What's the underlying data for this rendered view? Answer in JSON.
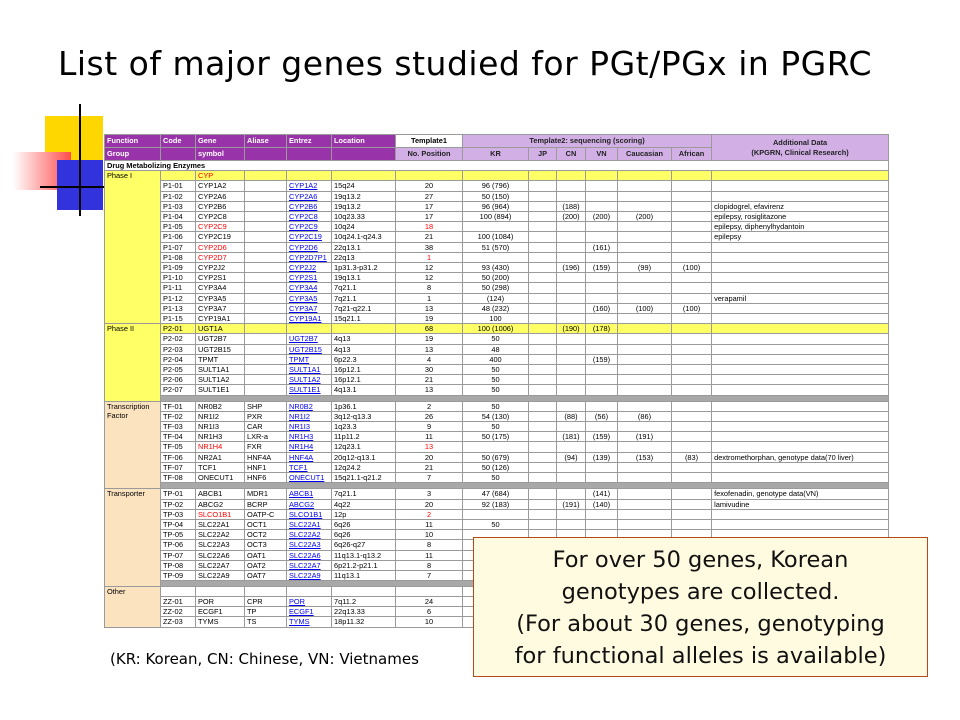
{
  "title": "List of major genes studied for PGt/PGx in PGRC",
  "colors": {
    "header_purple": "#9933aa",
    "header_light": "#d2b0e6",
    "group_bg": "#fbe3c0",
    "highlight_yellow": "#ffff66",
    "separator_gray": "#a8a8a8",
    "link_blue": "#0000ee",
    "alert_red": "#ff0000",
    "deco_yellow": "#ffd700",
    "deco_red": "#ff4c4c",
    "deco_blue": "#3333dd"
  },
  "table": {
    "header": {
      "function": "Function",
      "code": "Code",
      "gene": "Gene",
      "aliase": "Aliase",
      "entrez": "Entrez",
      "location": "Location",
      "template1": "Template1",
      "template2": "Template2: sequencing (scoring)",
      "additional_data": "Additional Data",
      "additional_data_sub": "(KPGRN, Clinical Research)",
      "group": "Group",
      "symbol": "symbol",
      "no_position": "No. Position",
      "pops": [
        "KR",
        "JP",
        "CN",
        "VN",
        "Caucasian",
        "African"
      ]
    },
    "rows": [
      {
        "type": "cat",
        "group": "Drug Metabolizing Enzymes"
      },
      {
        "type": "row",
        "group": "Phase I",
        "gs": 15,
        "code": "",
        "gene": "CYP",
        "hl": true,
        "red": true
      },
      {
        "type": "row",
        "code": "P1-01",
        "gene": "CYP1A2",
        "entrez": "CYP1A2",
        "loc": "15q24",
        "pos": "20",
        "kr": "96 (796)"
      },
      {
        "type": "row",
        "code": "P1-02",
        "gene": "CYP2A6",
        "entrez": "CYP2A6",
        "loc": "19q13.2",
        "pos": "27",
        "kr": "50 (150)"
      },
      {
        "type": "row",
        "code": "P1-03",
        "gene": "CYP2B6",
        "entrez": "CYP2B6",
        "loc": "19q13.2",
        "pos": "17",
        "kr": "96 (964)",
        "cn": "(188)",
        "add": "clopidogrel, efavirenz"
      },
      {
        "type": "row",
        "code": "P1-04",
        "gene": "CYP2C8",
        "entrez": "CYP2C8",
        "loc": "10q23.33",
        "pos": "17",
        "kr": "100 (894)",
        "cn": "(200)",
        "vn": "(200)",
        "cau": "(200)",
        "add": "epilepsy, rosiglitazone"
      },
      {
        "type": "row",
        "code": "P1-05",
        "gene": "CYP2C9",
        "red": true,
        "entrez": "CYP2C9",
        "loc": "10q24",
        "pos": "18",
        "posred": true,
        "add": "epilepsy, diphenylhydantoin"
      },
      {
        "type": "row",
        "code": "P1-06",
        "gene": "CYP2C19",
        "entrez": "CYP2C19",
        "loc": "10q24.1-q24.3",
        "pos": "21",
        "kr": "100 (1084)",
        "add": "epilepsy"
      },
      {
        "type": "row",
        "code": "P1-07",
        "gene": "CYP2D6",
        "red": true,
        "entrez": "CYP2D6",
        "loc": "22q13.1",
        "pos": "38",
        "kr": "51 (570)",
        "vn": "(161)"
      },
      {
        "type": "row",
        "code": "P1-08",
        "gene": "CYP2D7",
        "red": true,
        "entrez": "CYP2D7P1",
        "loc": "22q13",
        "pos": "1",
        "posred": true
      },
      {
        "type": "row",
        "code": "P1-09",
        "gene": "CYP2J2",
        "entrez": "CYP2J2",
        "loc": "1p31.3-p31.2",
        "pos": "12",
        "kr": "93 (430)",
        "cn": "(196)",
        "vn": "(159)",
        "cau": "(99)",
        "afr": "(100)"
      },
      {
        "type": "row",
        "code": "P1-10",
        "gene": "CYP2S1",
        "entrez": "CYP2S1",
        "loc": "19q13.1",
        "pos": "12",
        "kr": "50 (200)"
      },
      {
        "type": "row",
        "code": "P1-11",
        "gene": "CYP3A4",
        "entrez": "CYP3A4",
        "loc": "7q21.1",
        "pos": "8",
        "kr": "50 (298)"
      },
      {
        "type": "row",
        "code": "P1-12",
        "gene": "CYP3A5",
        "entrez": "CYP3A5",
        "loc": "7q21.1",
        "pos": "1",
        "kr": "(124)",
        "add": "verapamil"
      },
      {
        "type": "row",
        "code": "P1-13",
        "gene": "CYP3A7",
        "entrez": "CYP3A7",
        "loc": "7q21-q22.1",
        "pos": "13",
        "kr": "48 (232)",
        "vn": "(160)",
        "cau": "(100)",
        "afr": "(100)"
      },
      {
        "type": "row",
        "code": "P1-15",
        "gene": "CYP19A1",
        "entrez": "CYP19A1",
        "loc": "15q21.1",
        "pos": "19",
        "kr": "100"
      },
      {
        "type": "row",
        "group": "Phase II",
        "gs": 8,
        "code": "P2-01",
        "gene": "UGT1A",
        "hl": true,
        "pos": "68",
        "kr": "100 (1006)",
        "cn": "(190)",
        "vn": "(178)"
      },
      {
        "type": "row",
        "code": "P2-02",
        "gene": "UGT2B7",
        "entrez": "UGT2B7",
        "loc": "4q13",
        "pos": "19",
        "kr": "50"
      },
      {
        "type": "row",
        "code": "P2-03",
        "gene": "UGT2B15",
        "entrez": "UGT2B15",
        "loc": "4q13",
        "pos": "13",
        "kr": "48"
      },
      {
        "type": "row",
        "code": "P2-04",
        "gene": "TPMT",
        "entrez": "TPMT",
        "loc": "6p22.3",
        "pos": "4",
        "kr": "400",
        "vn": "(159)"
      },
      {
        "type": "row",
        "code": "P2-05",
        "gene": "SULT1A1",
        "entrez": "SULT1A1",
        "loc": "16p12.1",
        "pos": "30",
        "kr": "50"
      },
      {
        "type": "row",
        "code": "P2-06",
        "gene": "SULT1A2",
        "entrez": "SULT1A2",
        "loc": "16p12.1",
        "pos": "21",
        "kr": "50"
      },
      {
        "type": "row",
        "code": "P2-07",
        "gene": "SULT1E1",
        "entrez": "SULT1E1",
        "loc": "4q13.1",
        "pos": "13",
        "kr": "50"
      },
      {
        "type": "sep"
      },
      {
        "type": "row",
        "group": "Transcription Factor",
        "gs": 9,
        "code": "TF-01",
        "gene": "NR0B2",
        "alias": "SHP",
        "entrez": "NR0B2",
        "loc": "1p36.1",
        "pos": "2",
        "kr": "50"
      },
      {
        "type": "row",
        "code": "TF-02",
        "gene": "NR1I2",
        "alias": "PXR",
        "entrez": "NR1I2",
        "loc": "3q12-q13.3",
        "pos": "26",
        "kr": "54 (130)",
        "cn": "(88)",
        "vn": "(56)",
        "cau": "(86)"
      },
      {
        "type": "row",
        "code": "TF-03",
        "gene": "NR1I3",
        "alias": "CAR",
        "entrez": "NR1I3",
        "loc": "1q23.3",
        "pos": "9",
        "kr": "50"
      },
      {
        "type": "row",
        "code": "TF-04",
        "gene": "NR1H3",
        "alias": "LXR-a",
        "entrez": "NR1H3",
        "loc": "11p11.2",
        "pos": "11",
        "kr": "50 (175)",
        "cn": "(181)",
        "vn": "(159)",
        "cau": "(191)"
      },
      {
        "type": "row",
        "code": "TF-05",
        "gene": "NR1H4",
        "red": true,
        "alias": "FXR",
        "entrez": "NR1H4",
        "loc": "12q23.1",
        "pos": "13",
        "posred": true
      },
      {
        "type": "row",
        "code": "TF-06",
        "gene": "NR2A1",
        "alias": "HNF4A",
        "entrez": "HNF4A",
        "loc": "20q12-q13.1",
        "pos": "20",
        "kr": "50 (679)",
        "cn": "(94)",
        "vn": "(139)",
        "cau": "(153)",
        "afr": "(83)",
        "add": "dextromethorphan, genotype data(70 liver)"
      },
      {
        "type": "row",
        "code": "TF-07",
        "gene": "TCF1",
        "alias": "HNF1",
        "entrez": "TCF1",
        "loc": "12q24.2",
        "pos": "21",
        "kr": "50 (126)"
      },
      {
        "type": "row",
        "code": "TF-08",
        "gene": "ONECUT1",
        "alias": "HNF6",
        "entrez": "ONECUT1",
        "loc": "15q21.1-q21.2",
        "pos": "7",
        "kr": "50"
      },
      {
        "type": "sep"
      },
      {
        "type": "row",
        "group": "Transporter",
        "gs": 10,
        "code": "TP-01",
        "gene": "ABCB1",
        "alias": "MDR1",
        "entrez": "ABCB1",
        "loc": "7q21.1",
        "pos": "3",
        "kr": "47 (684)",
        "vn": "(141)",
        "add": "fexofenadin, genotype data(VN)"
      },
      {
        "type": "row",
        "code": "TP-02",
        "gene": "ABCG2",
        "alias": "BCRP",
        "entrez": "ABCG2",
        "loc": "4q22",
        "pos": "20",
        "kr": "92 (183)",
        "cn": "(191)",
        "vn": "(140)",
        "add": "lamivudine"
      },
      {
        "type": "row",
        "code": "TP-03",
        "gene": "SLCO1B1",
        "red": true,
        "alias": "OATP-C",
        "entrez": "SLCO1B1",
        "loc": "12p",
        "pos": "2",
        "posred": true
      },
      {
        "type": "row",
        "code": "TP-04",
        "gene": "SLC22A1",
        "alias": "OCT1",
        "entrez": "SLC22A1",
        "loc": "6q26",
        "pos": "11",
        "kr": "50"
      },
      {
        "type": "row",
        "code": "TP-05",
        "gene": "SLC22A2",
        "alias": "OCT2",
        "entrez": "SLC22A2",
        "loc": "6q26",
        "pos": "10"
      },
      {
        "type": "row",
        "code": "TP-06",
        "gene": "SLC22A3",
        "alias": "OCT3",
        "entrez": "SLC22A3",
        "loc": "6q26-q27",
        "pos": "8"
      },
      {
        "type": "row",
        "code": "TP-07",
        "gene": "SLC22A6",
        "alias": "OAT1",
        "entrez": "SLC22A6",
        "loc": "11q13.1-q13.2",
        "pos": "11"
      },
      {
        "type": "row",
        "code": "TP-08",
        "gene": "SLC22A7",
        "alias": "OAT2",
        "entrez": "SLC22A7",
        "loc": "6p21.2-p21.1",
        "pos": "8"
      },
      {
        "type": "row",
        "code": "TP-09",
        "gene": "SLC22A9",
        "alias": "OAT7",
        "entrez": "SLC22A9",
        "loc": "11q13.1",
        "pos": "7"
      },
      {
        "type": "sep"
      },
      {
        "type": "row",
        "group": "Other",
        "gs": 4,
        "code": "",
        "gene": ""
      },
      {
        "type": "row",
        "code": "ZZ-01",
        "gene": "POR",
        "alias": "CPR",
        "entrez": "POR",
        "loc": "7q11.2",
        "pos": "24"
      },
      {
        "type": "row",
        "code": "ZZ-02",
        "gene": "ECGF1",
        "alias": "TP",
        "entrez": "ECGF1",
        "loc": "22q13.33",
        "pos": "6"
      },
      {
        "type": "row",
        "code": "ZZ-03",
        "gene": "TYMS",
        "alias": "TS",
        "entrez": "TYMS",
        "loc": "18p11.32",
        "pos": "10"
      }
    ]
  },
  "callout": {
    "line1": "For over 50 genes, Korean",
    "line2": "genotypes are collected.",
    "line3": "(For about 30 genes, genotyping",
    "line4": "for functional alleles is available)"
  },
  "legend": "(KR: Korean, CN: Chinese, VN: Vietnames"
}
